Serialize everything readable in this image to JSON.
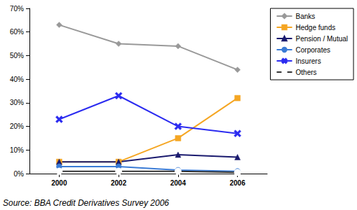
{
  "chart_data": {
    "type": "line",
    "annotations": [
      "Source: BBA Credit Derivatives Survey 2006"
    ],
    "categories": [
      "2000",
      "2002",
      "2004",
      "2006"
    ],
    "series": [
      {
        "name": "Banks",
        "color": "#999999",
        "marker": "diamond",
        "values": [
          63,
          55,
          54,
          44
        ]
      },
      {
        "name": "Hedge funds",
        "color": "#f5a623",
        "marker": "square",
        "values": [
          5,
          5,
          15,
          32
        ]
      },
      {
        "name": "Pension / Mutual",
        "color": "#1a1a6e",
        "marker": "triangle",
        "values": [
          5,
          5,
          8,
          7
        ]
      },
      {
        "name": "Corporates",
        "color": "#3a7bd5",
        "marker": "circle",
        "values": [
          3,
          3,
          1.5,
          1
        ]
      },
      {
        "name": "Insurers",
        "color": "#2b2bf0",
        "marker": "x",
        "values": [
          23,
          33,
          20,
          17
        ]
      },
      {
        "name": "Others",
        "color": "#333333",
        "marker": "circle_open",
        "values": [
          1,
          1,
          1,
          0.5
        ]
      }
    ],
    "ylim": [
      0,
      70
    ],
    "yticks": [
      {
        "value": 0,
        "label": "0%"
      },
      {
        "value": 10,
        "label": "10%"
      },
      {
        "value": 20,
        "label": "20%"
      },
      {
        "value": 30,
        "label": "30%"
      },
      {
        "value": 40,
        "label": "40%"
      },
      {
        "value": 50,
        "label": "50%"
      },
      {
        "value": 60,
        "label": "60%"
      },
      {
        "value": 70,
        "label": "70%"
      }
    ],
    "grid": false,
    "legend": "right"
  }
}
